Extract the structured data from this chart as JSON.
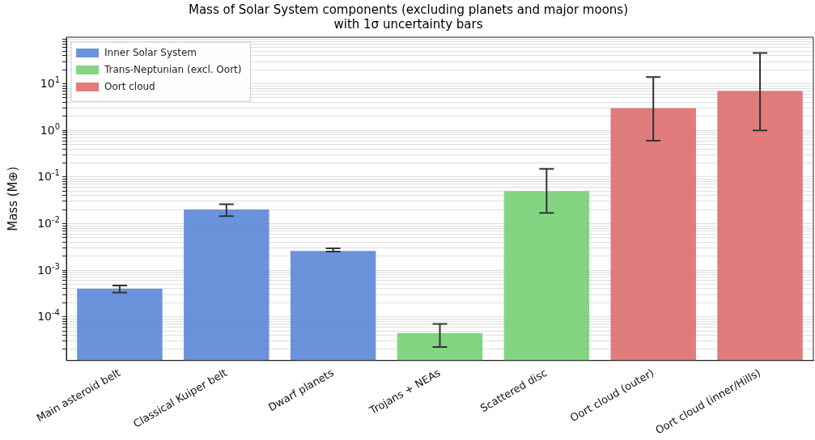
{
  "chart_data": {
    "type": "bar",
    "title": "Mass of Solar System components (excluding planets and major moons)\nwith 1σ uncertainty bars",
    "ylabel": "Mass (M⊕)",
    "categories": [
      "Main asteroid belt",
      "Classical Kuiper belt",
      "Dwarf planets",
      "Trojans + NEAs",
      "Scattered disc",
      "Oort cloud (outer)",
      "Oort cloud (inner/Hills)"
    ],
    "series": [
      {
        "name": "Inner Solar System",
        "color": "#5b87d8",
        "values": [
          0.0004,
          0.02,
          0.0026,
          null,
          null,
          null,
          null
        ],
        "errors": [
          [
            0.00033,
            0.00047
          ],
          [
            0.0144,
            0.026
          ],
          [
            0.0025,
            0.00296
          ],
          null,
          null,
          null,
          null
        ]
      },
      {
        "name": "Trans-Neptunian (excl. Oort)",
        "color": "#77d074",
        "values": [
          null,
          null,
          null,
          4.5e-05,
          0.05,
          null,
          null
        ],
        "errors": [
          null,
          null,
          null,
          [
            2.25e-05,
            7e-05
          ],
          [
            0.017,
            0.15
          ],
          null,
          null
        ]
      },
      {
        "name": "Oort cloud",
        "color": "#dd6e6e",
        "values": [
          null,
          null,
          null,
          null,
          null,
          3,
          7
        ],
        "errors": [
          null,
          null,
          null,
          null,
          null,
          [
            0.6,
            14
          ],
          [
            1,
            46
          ]
        ]
      }
    ],
    "log": "y",
    "ylim": [
      1.15e-05,
      100
    ],
    "yticks": [
      {
        "value": 2e-05,
        "label": null
      },
      {
        "value": 3e-05,
        "label": null
      },
      {
        "value": 4e-05,
        "label": null
      },
      {
        "value": 5e-05,
        "label": null
      },
      {
        "value": 6e-05,
        "label": null
      },
      {
        "value": 7e-05,
        "label": null
      },
      {
        "value": 8e-05,
        "label": null
      },
      {
        "value": 9e-05,
        "label": null
      },
      {
        "value": 0.0001,
        "label": "10$^{-4}$"
      },
      {
        "value": 0.0002,
        "label": null
      },
      {
        "value": 0.0003,
        "label": null
      },
      {
        "value": 0.0004,
        "label": null
      },
      {
        "value": 0.0005,
        "label": null
      },
      {
        "value": 0.0006,
        "label": null
      },
      {
        "value": 0.0007,
        "label": null
      },
      {
        "value": 0.0008,
        "label": null
      },
      {
        "value": 0.0009,
        "label": null
      },
      {
        "value": 0.001,
        "label": "10$^{-3}$"
      },
      {
        "value": 0.002,
        "label": null
      },
      {
        "value": 0.003,
        "label": null
      },
      {
        "value": 0.004,
        "label": null
      },
      {
        "value": 0.005,
        "label": null
      },
      {
        "value": 0.006,
        "label": null
      },
      {
        "value": 0.007,
        "label": null
      },
      {
        "value": 0.008,
        "label": null
      },
      {
        "value": 0.009,
        "label": null
      },
      {
        "value": 0.01,
        "label": "10$^{-2}$"
      },
      {
        "value": 0.02,
        "label": null
      },
      {
        "value": 0.03,
        "label": null
      },
      {
        "value": 0.04,
        "label": null
      },
      {
        "value": 0.05,
        "label": null
      },
      {
        "value": 0.06,
        "label": null
      },
      {
        "value": 0.07,
        "label": null
      },
      {
        "value": 0.08,
        "label": null
      },
      {
        "value": 0.09,
        "label": null
      },
      {
        "value": 0.1,
        "label": "10$^{-1}$"
      },
      {
        "value": 0.2,
        "label": null
      },
      {
        "value": 0.3,
        "label": null
      },
      {
        "value": 0.4,
        "label": null
      },
      {
        "value": 0.5,
        "label": null
      },
      {
        "value": 0.6,
        "label": null
      },
      {
        "value": 0.7,
        "label": null
      },
      {
        "value": 0.8,
        "label": null
      },
      {
        "value": 0.9,
        "label": null
      },
      {
        "value": 1,
        "label": "10$^{0}$"
      },
      {
        "value": 2,
        "label": null
      },
      {
        "value": 3,
        "label": null
      },
      {
        "value": 4,
        "label": null
      },
      {
        "value": 5,
        "label": null
      },
      {
        "value": 6,
        "label": null
      },
      {
        "value": 7,
        "label": null
      },
      {
        "value": 8,
        "label": null
      },
      {
        "value": 9,
        "label": null
      },
      {
        "value": 10,
        "label": "10$^{1}$"
      },
      {
        "value": 20,
        "label": null
      },
      {
        "value": 30,
        "label": null
      },
      {
        "value": 40,
        "label": null
      },
      {
        "value": 50,
        "label": null
      },
      {
        "value": 60,
        "label": null
      },
      {
        "value": 70,
        "label": null
      },
      {
        "value": 80,
        "label": null
      },
      {
        "value": 90,
        "label": null
      }
    ],
    "grid": "y",
    "legend": "top left"
  }
}
